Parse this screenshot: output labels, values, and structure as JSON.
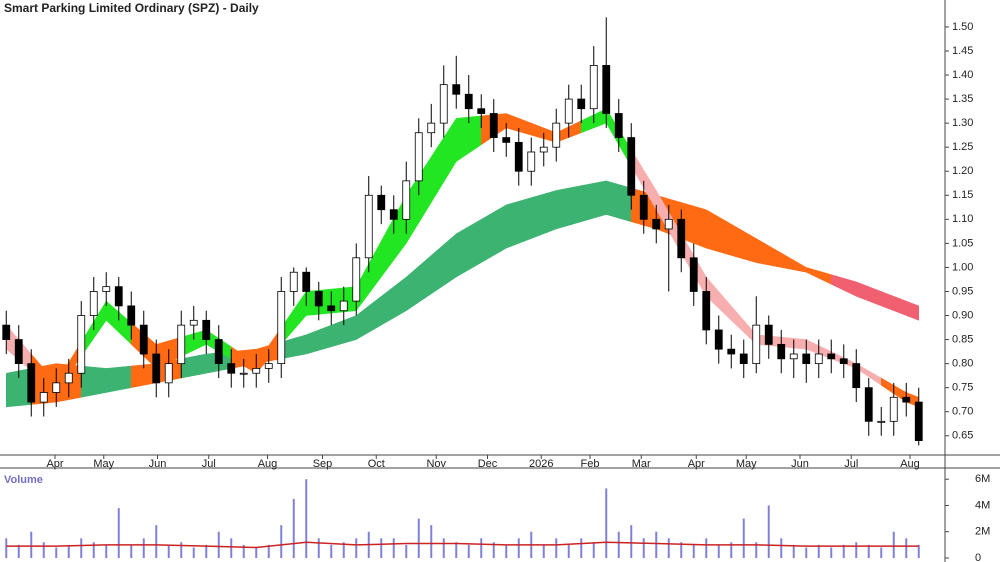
{
  "chart_data": {
    "type": "candlestick",
    "title": "Smart Parking Limited Ordinary (SPZ) - Daily",
    "x": [
      0,
      1,
      2,
      3,
      4,
      5,
      6,
      7,
      8,
      9,
      10,
      11,
      12,
      13,
      14,
      15,
      16,
      17,
      18,
      19,
      20,
      21,
      22,
      23,
      24,
      25,
      26,
      27,
      28,
      29,
      30,
      31,
      32,
      33,
      34,
      35,
      36,
      37,
      38,
      39,
      40,
      41,
      42,
      43,
      44,
      45,
      46,
      47,
      48,
      49,
      50,
      51,
      52,
      53,
      54,
      55,
      56,
      57,
      58,
      59,
      60,
      61,
      62,
      63,
      64,
      65,
      66,
      67,
      68,
      69,
      70,
      71,
      72,
      73
    ],
    "open": [
      0.88,
      0.85,
      0.8,
      0.72,
      0.74,
      0.76,
      0.78,
      0.9,
      0.95,
      0.96,
      0.92,
      0.88,
      0.82,
      0.76,
      0.8,
      0.88,
      0.89,
      0.85,
      0.8,
      0.78,
      0.78,
      0.79,
      0.8,
      0.95,
      0.99,
      0.95,
      0.92,
      0.91,
      0.93,
      1.02,
      1.15,
      1.12,
      1.1,
      1.18,
      1.28,
      1.3,
      1.38,
      1.36,
      1.33,
      1.32,
      1.27,
      1.26,
      1.2,
      1.24,
      1.25,
      1.3,
      1.35,
      1.33,
      1.42,
      1.32,
      1.27,
      1.15,
      1.1,
      1.08,
      1.1,
      1.02,
      0.95,
      0.87,
      0.83,
      0.82,
      0.8,
      0.88,
      0.84,
      0.81,
      0.82,
      0.8,
      0.82,
      0.81,
      0.8,
      0.75,
      0.68,
      0.68,
      0.73,
      0.72
    ],
    "high": [
      0.91,
      0.88,
      0.83,
      0.77,
      0.79,
      0.81,
      0.93,
      0.98,
      0.99,
      0.98,
      0.95,
      0.91,
      0.85,
      0.83,
      0.91,
      0.92,
      0.91,
      0.88,
      0.83,
      0.81,
      0.82,
      0.83,
      0.98,
      1.0,
      1.0,
      0.97,
      0.95,
      0.96,
      1.05,
      1.19,
      1.17,
      1.15,
      1.22,
      1.31,
      1.34,
      1.42,
      1.44,
      1.4,
      1.36,
      1.35,
      1.3,
      1.29,
      1.27,
      1.28,
      1.33,
      1.38,
      1.38,
      1.46,
      1.52,
      1.35,
      1.3,
      1.18,
      1.13,
      1.13,
      1.12,
      1.05,
      0.98,
      0.9,
      0.86,
      0.85,
      0.94,
      0.9,
      0.87,
      0.85,
      0.85,
      0.85,
      0.85,
      0.84,
      0.83,
      0.77,
      0.71,
      0.76,
      0.76,
      0.75
    ],
    "low": [
      0.82,
      0.77,
      0.69,
      0.69,
      0.71,
      0.73,
      0.75,
      0.87,
      0.92,
      0.89,
      0.85,
      0.79,
      0.73,
      0.73,
      0.77,
      0.85,
      0.82,
      0.77,
      0.75,
      0.75,
      0.75,
      0.76,
      0.77,
      0.92,
      0.92,
      0.89,
      0.88,
      0.88,
      0.9,
      0.99,
      1.09,
      1.07,
      1.07,
      1.15,
      1.25,
      1.27,
      1.33,
      1.3,
      1.29,
      1.24,
      1.23,
      1.17,
      1.17,
      1.21,
      1.22,
      1.27,
      1.3,
      1.3,
      1.29,
      1.24,
      1.12,
      1.07,
      1.05,
      0.95,
      0.99,
      0.92,
      0.84,
      0.8,
      0.79,
      0.77,
      0.78,
      0.81,
      0.78,
      0.77,
      0.76,
      0.77,
      0.78,
      0.77,
      0.72,
      0.65,
      0.65,
      0.65,
      0.69,
      0.63
    ],
    "close": [
      0.85,
      0.8,
      0.72,
      0.74,
      0.76,
      0.78,
      0.9,
      0.95,
      0.96,
      0.92,
      0.88,
      0.82,
      0.76,
      0.8,
      0.88,
      0.89,
      0.85,
      0.8,
      0.78,
      0.78,
      0.79,
      0.8,
      0.95,
      0.99,
      0.95,
      0.92,
      0.91,
      0.93,
      1.02,
      1.15,
      1.12,
      1.1,
      1.18,
      1.28,
      1.3,
      1.38,
      1.36,
      1.33,
      1.32,
      1.27,
      1.26,
      1.2,
      1.24,
      1.25,
      1.3,
      1.35,
      1.33,
      1.42,
      1.32,
      1.27,
      1.15,
      1.1,
      1.08,
      1.1,
      1.02,
      0.95,
      0.87,
      0.83,
      0.82,
      0.8,
      0.88,
      0.84,
      0.81,
      0.82,
      0.8,
      0.82,
      0.81,
      0.8,
      0.75,
      0.68,
      0.68,
      0.73,
      0.72,
      0.64
    ],
    "up_color": "#ffffff",
    "down_color": "#000000",
    "xlim": [
      -0.5,
      75.1
    ],
    "xticks": [
      {
        "value": 3.9,
        "label": "Apr"
      },
      {
        "value": 7.8,
        "label": "May"
      },
      {
        "value": 12.1,
        "label": "Jun"
      },
      {
        "value": 16.2,
        "label": "Jul"
      },
      {
        "value": 20.9,
        "label": "Aug"
      },
      {
        "value": 25.3,
        "label": "Sep"
      },
      {
        "value": 29.6,
        "label": "Oct"
      },
      {
        "value": 34.4,
        "label": "Nov"
      },
      {
        "value": 38.5,
        "label": "Dec"
      },
      {
        "value": 42.8,
        "label": "2026"
      },
      {
        "value": 46.7,
        "label": "Feb"
      },
      {
        "value": 50.8,
        "label": "Mar"
      },
      {
        "value": 55.2,
        "label": "Apr"
      },
      {
        "value": 59.2,
        "label": "May"
      },
      {
        "value": 63.5,
        "label": "Jun"
      },
      {
        "value": 67.6,
        "label": "Jul"
      },
      {
        "value": 72.3,
        "label": "Aug"
      }
    ],
    "ylim": [
      0.61,
      1.556
    ],
    "yticks": [
      0.65,
      {
        "value": 0.7,
        "label": "0.70"
      },
      0.75,
      {
        "value": 0.8,
        "label": "0.80"
      },
      0.85,
      {
        "value": 0.9,
        "label": "0.90"
      },
      0.95,
      {
        "value": 1,
        "label": "1.00"
      },
      1.05,
      {
        "value": 1.1,
        "label": "1.10"
      },
      1.15,
      {
        "value": 1.2,
        "label": "1.20"
      },
      1.25,
      {
        "value": 1.3,
        "label": "1.30"
      },
      1.35,
      {
        "value": 1.4,
        "label": "1.40"
      },
      1.45,
      {
        "value": 1.5,
        "label": "1.50"
      }
    ],
    "indicator_x": [
      0,
      4,
      8,
      12,
      16,
      20,
      24,
      28,
      32,
      36,
      40,
      44,
      48,
      52,
      56,
      60,
      64,
      68,
      72,
      73
    ],
    "short_ribbon": {
      "upper": [
        0.88,
        0.76,
        0.93,
        0.84,
        0.87,
        0.8,
        0.95,
        0.96,
        1.15,
        1.31,
        1.32,
        1.28,
        1.33,
        1.16,
        0.98,
        0.86,
        0.85,
        0.8,
        0.74,
        0.73
      ],
      "lower": [
        0.83,
        0.74,
        0.89,
        0.79,
        0.84,
        0.78,
        0.9,
        0.91,
        1.05,
        1.22,
        1.29,
        1.26,
        1.3,
        1.12,
        0.94,
        0.84,
        0.83,
        0.79,
        0.72,
        0.71
      ],
      "colors": [
        "#f7aeae",
        "#ff6a13",
        "#22e622",
        "#ff6a13",
        "#22e622",
        "#ff6a13",
        "#22e622",
        "#22e622",
        "#22e622",
        "#22e622",
        "#ff6a13",
        "#ff6a13",
        "#22e622",
        "#f7aeae",
        "#f7aeae",
        "#f7aeae",
        "#f7aeae",
        "#f7aeae",
        "#ff6a13",
        "#ff6a13"
      ]
    },
    "long_ribbon": {
      "upper": [
        0.78,
        0.8,
        0.79,
        0.8,
        0.82,
        0.83,
        0.86,
        0.9,
        0.98,
        1.07,
        1.13,
        1.16,
        1.18,
        1.15,
        1.12,
        1.06,
        1.0,
        0.97,
        0.93,
        0.92
      ],
      "lower": [
        0.71,
        0.72,
        0.74,
        0.76,
        0.78,
        0.8,
        0.82,
        0.85,
        0.91,
        0.98,
        1.04,
        1.08,
        1.11,
        1.08,
        1.04,
        1.01,
        0.99,
        0.94,
        0.9,
        0.89
      ],
      "colors": [
        "#3cb371",
        "#ff6a13",
        "#3cb371",
        "#ff6a13",
        "#3cb371",
        "#ff6a13",
        "#3cb371",
        "#3cb371",
        "#3cb371",
        "#3cb371",
        "#3cb371",
        "#3cb371",
        "#3cb371",
        "#ff6a13",
        "#ff6a13",
        "#ff6a13",
        "#ff6a13",
        "#f06070",
        "#f06070",
        "#f06070"
      ]
    },
    "volume_label": "Volume",
    "volume": [
      1.5,
      1,
      2,
      1.2,
      0.8,
      1,
      1.5,
      1.2,
      1,
      3.8,
      1,
      1.5,
      2.5,
      1,
      1.2,
      0.8,
      1,
      2,
      1.5,
      1,
      0.8,
      1,
      2.5,
      4.5,
      6,
      1.5,
      1,
      1.2,
      1.5,
      2,
      1.5,
      1.5,
      1,
      3,
      2.5,
      1.5,
      1.2,
      1,
      1.5,
      1.2,
      1,
      1.5,
      2,
      1,
      1.5,
      1,
      1.5,
      1.2,
      5.3,
      2,
      2.5,
      1.5,
      2,
      1.5,
      1.2,
      1,
      1.5,
      1,
      1.2,
      3,
      1.2,
      4,
      1.5,
      1,
      0.8,
      1,
      0.8,
      1,
      1.2,
      1,
      0.8,
      2,
      1.5,
      1
    ],
    "volume_color": "#8080d8",
    "volume_ma": [
      0.9,
      0.9,
      1,
      1,
      0.9,
      0.8,
      1.2,
      1,
      1.1,
      1.1,
      1,
      1,
      1.2,
      1.1,
      1,
      1,
      0.9,
      0.9,
      0.9,
      0.9
    ],
    "volume_ma_color": "#cc2222",
    "volume_ylim": [
      0,
      6.7
    ],
    "volume_ticks": [
      0,
      {
        "value": 2,
        "label": "2M"
      },
      {
        "value": 4,
        "label": "4M"
      },
      {
        "value": 6,
        "label": "6M"
      }
    ]
  }
}
